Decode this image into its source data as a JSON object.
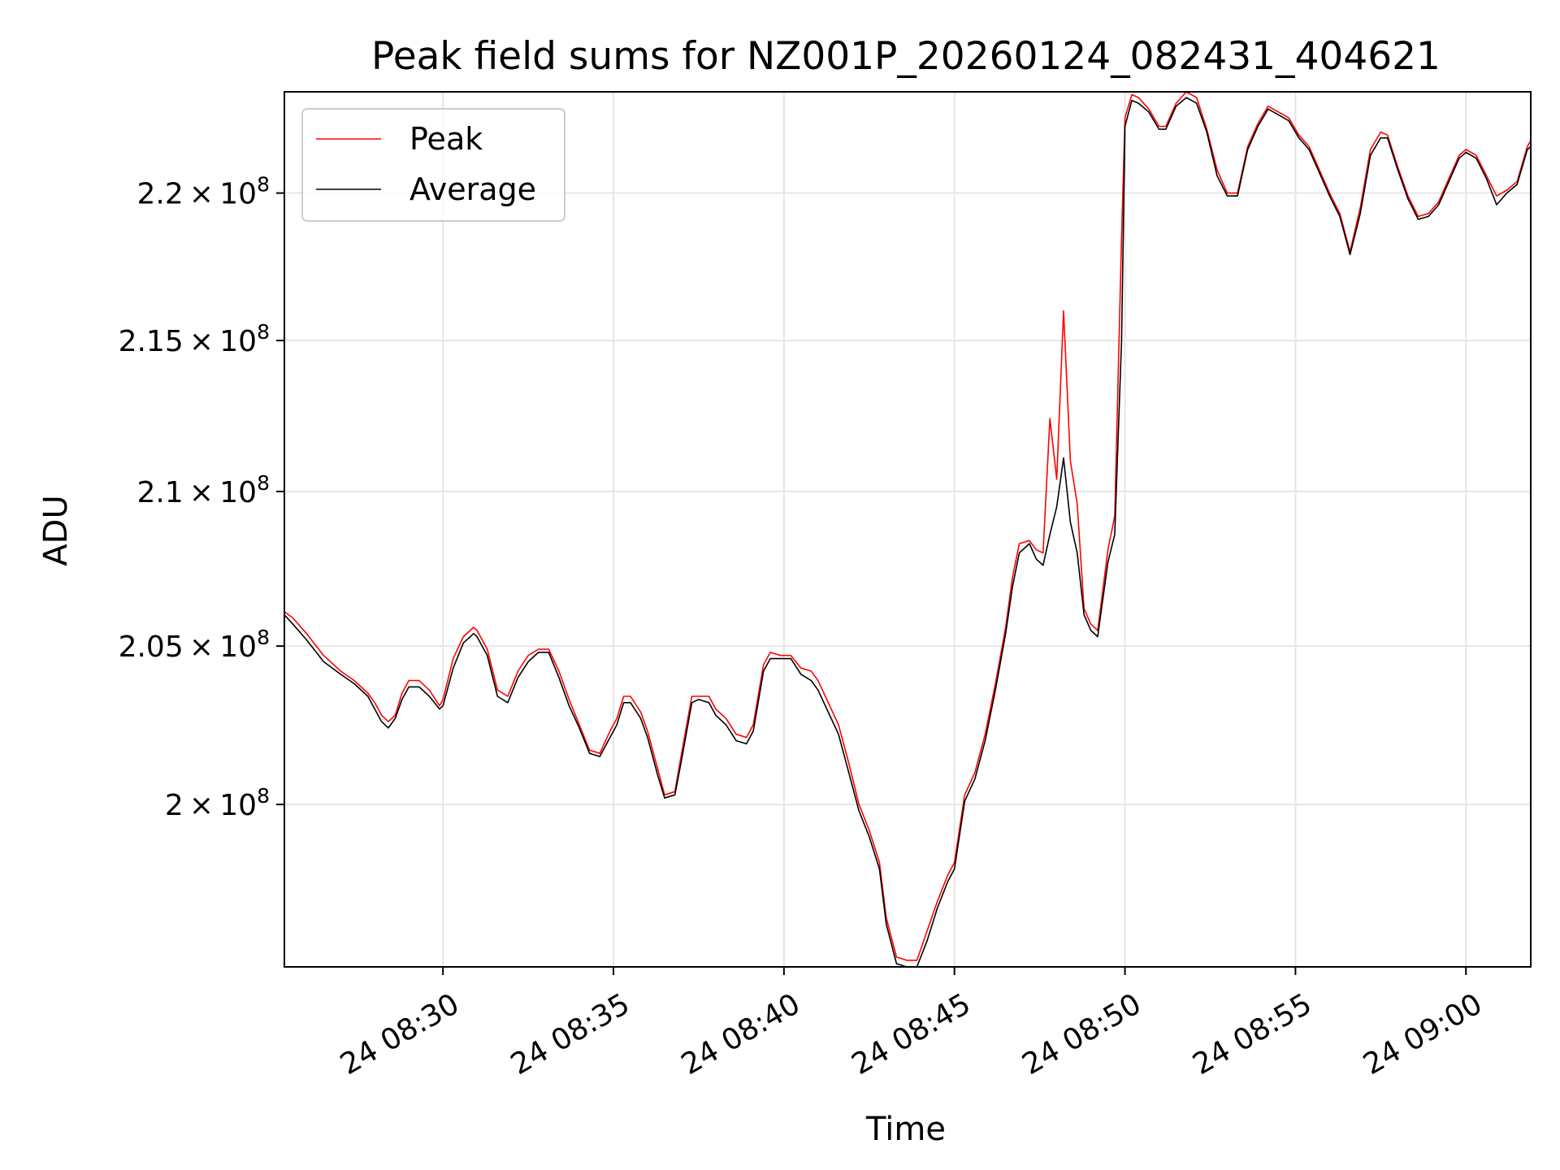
{
  "chart_data": {
    "type": "line",
    "title": "Peak field sums for NZ001P_20260124_082431_404621",
    "xlabel": "Time",
    "ylabel": "ADU",
    "y_scale": "log",
    "grid": true,
    "legend_position": "top-left",
    "xlim_min": [
      25.35,
      61.9
    ],
    "ylim": [
      195000000.0,
      223500000.0
    ],
    "x_ticks": [
      {
        "value": 30,
        "label": "24 08:30"
      },
      {
        "value": 35,
        "label": "24 08:35"
      },
      {
        "value": 40,
        "label": "24 08:40"
      },
      {
        "value": 45,
        "label": "24 08:45"
      },
      {
        "value": 50,
        "label": "24 08:50"
      },
      {
        "value": 55,
        "label": "24 08:55"
      },
      {
        "value": 60,
        "label": "24 09:00"
      }
    ],
    "y_ticks": [
      {
        "value": 200000000,
        "mantissa": "2",
        "exp": "8"
      },
      {
        "value": 205000000,
        "mantissa": "2.05",
        "exp": "8"
      },
      {
        "value": 210000000,
        "mantissa": "2.1",
        "exp": "8"
      },
      {
        "value": 215000000,
        "mantissa": "2.15",
        "exp": "8"
      },
      {
        "value": 220000000,
        "mantissa": "2.2",
        "exp": "8"
      }
    ],
    "series": [
      {
        "name": "Peak",
        "color": "#ff0000",
        "points": [
          [
            25.35,
            206.1
          ],
          [
            25.6,
            205.9
          ],
          [
            26.0,
            205.4
          ],
          [
            26.5,
            204.7
          ],
          [
            27.0,
            204.2
          ],
          [
            27.4,
            203.9
          ],
          [
            27.8,
            203.5
          ],
          [
            28.0,
            203.2
          ],
          [
            28.2,
            202.8
          ],
          [
            28.4,
            202.6
          ],
          [
            28.6,
            202.8
          ],
          [
            28.8,
            203.5
          ],
          [
            29.0,
            203.9
          ],
          [
            29.3,
            203.9
          ],
          [
            29.6,
            203.6
          ],
          [
            29.9,
            203.1
          ],
          [
            30.0,
            203.3
          ],
          [
            30.3,
            204.6
          ],
          [
            30.6,
            205.3
          ],
          [
            30.9,
            205.6
          ],
          [
            31.0,
            205.5
          ],
          [
            31.3,
            204.9
          ],
          [
            31.6,
            203.6
          ],
          [
            31.9,
            203.4
          ],
          [
            32.2,
            204.2
          ],
          [
            32.5,
            204.7
          ],
          [
            32.8,
            204.9
          ],
          [
            33.1,
            204.9
          ],
          [
            33.4,
            204.2
          ],
          [
            33.7,
            203.3
          ],
          [
            34.0,
            202.5
          ],
          [
            34.3,
            201.7
          ],
          [
            34.6,
            201.6
          ],
          [
            34.9,
            202.3
          ],
          [
            35.1,
            202.7
          ],
          [
            35.3,
            203.4
          ],
          [
            35.5,
            203.4
          ],
          [
            35.8,
            202.9
          ],
          [
            36.0,
            202.3
          ],
          [
            36.3,
            201.1
          ],
          [
            36.5,
            200.3
          ],
          [
            36.8,
            200.4
          ],
          [
            37.0,
            201.6
          ],
          [
            37.3,
            203.4
          ],
          [
            37.5,
            203.4
          ],
          [
            37.8,
            203.4
          ],
          [
            38.0,
            203.0
          ],
          [
            38.3,
            202.7
          ],
          [
            38.6,
            202.2
          ],
          [
            38.9,
            202.1
          ],
          [
            39.1,
            202.5
          ],
          [
            39.4,
            204.4
          ],
          [
            39.6,
            204.8
          ],
          [
            39.9,
            204.7
          ],
          [
            40.2,
            204.7
          ],
          [
            40.5,
            204.3
          ],
          [
            40.8,
            204.2
          ],
          [
            41.0,
            203.9
          ],
          [
            41.3,
            203.2
          ],
          [
            41.6,
            202.5
          ],
          [
            41.9,
            201.3
          ],
          [
            42.2,
            200.0
          ],
          [
            42.5,
            199.2
          ],
          [
            42.8,
            198.2
          ],
          [
            43.0,
            196.5
          ],
          [
            43.3,
            195.3
          ],
          [
            43.6,
            195.2
          ],
          [
            43.9,
            195.2
          ],
          [
            44.2,
            196.1
          ],
          [
            44.5,
            197.0
          ],
          [
            44.8,
            197.8
          ],
          [
            45.0,
            198.2
          ],
          [
            45.3,
            200.3
          ],
          [
            45.6,
            201.0
          ],
          [
            45.9,
            202.2
          ],
          [
            46.2,
            203.8
          ],
          [
            46.5,
            205.6
          ],
          [
            46.7,
            207.2
          ],
          [
            46.9,
            208.3
          ],
          [
            47.2,
            208.4
          ],
          [
            47.4,
            208.1
          ],
          [
            47.6,
            208.0
          ],
          [
            47.8,
            212.4
          ],
          [
            48.0,
            210.4
          ],
          [
            48.2,
            216.0
          ],
          [
            48.4,
            211.0
          ],
          [
            48.6,
            209.6
          ],
          [
            48.8,
            206.2
          ],
          [
            49.0,
            205.7
          ],
          [
            49.2,
            205.5
          ],
          [
            49.5,
            208.1
          ],
          [
            49.7,
            209.2
          ],
          [
            49.9,
            218.5
          ],
          [
            50.0,
            222.6
          ],
          [
            50.2,
            223.4
          ],
          [
            50.4,
            223.3
          ],
          [
            50.7,
            222.9
          ],
          [
            51.0,
            222.3
          ],
          [
            51.2,
            222.3
          ],
          [
            51.5,
            223.1
          ],
          [
            51.8,
            223.5
          ],
          [
            52.1,
            223.3
          ],
          [
            52.4,
            222.2
          ],
          [
            52.7,
            220.8
          ],
          [
            53.0,
            220.0
          ],
          [
            53.3,
            220.0
          ],
          [
            53.6,
            221.6
          ],
          [
            53.9,
            222.4
          ],
          [
            54.2,
            223.0
          ],
          [
            54.5,
            222.8
          ],
          [
            54.8,
            222.6
          ],
          [
            55.1,
            222.0
          ],
          [
            55.4,
            221.6
          ],
          [
            55.7,
            220.8
          ],
          [
            56.0,
            220.0
          ],
          [
            56.3,
            219.3
          ],
          [
            56.6,
            218.0
          ],
          [
            56.9,
            219.5
          ],
          [
            57.2,
            221.5
          ],
          [
            57.5,
            222.1
          ],
          [
            57.7,
            222.0
          ],
          [
            58.0,
            220.9
          ],
          [
            58.3,
            219.9
          ],
          [
            58.6,
            219.2
          ],
          [
            58.9,
            219.3
          ],
          [
            59.2,
            219.7
          ],
          [
            59.5,
            220.5
          ],
          [
            59.8,
            221.3
          ],
          [
            60.0,
            221.5
          ],
          [
            60.3,
            221.3
          ],
          [
            60.6,
            220.6
          ],
          [
            60.9,
            219.9
          ],
          [
            61.2,
            220.1
          ],
          [
            61.5,
            220.4
          ],
          [
            61.8,
            221.6
          ],
          [
            61.9,
            221.8
          ]
        ]
      },
      {
        "name": "Average",
        "color": "#000000",
        "points": [
          [
            25.35,
            206.0
          ],
          [
            25.6,
            205.7
          ],
          [
            26.0,
            205.2
          ],
          [
            26.5,
            204.5
          ],
          [
            27.0,
            204.1
          ],
          [
            27.4,
            203.8
          ],
          [
            27.8,
            203.4
          ],
          [
            28.0,
            203.0
          ],
          [
            28.2,
            202.6
          ],
          [
            28.4,
            202.4
          ],
          [
            28.6,
            202.7
          ],
          [
            28.8,
            203.3
          ],
          [
            29.0,
            203.7
          ],
          [
            29.3,
            203.7
          ],
          [
            29.6,
            203.4
          ],
          [
            29.9,
            203.0
          ],
          [
            30.0,
            203.1
          ],
          [
            30.3,
            204.3
          ],
          [
            30.6,
            205.1
          ],
          [
            30.9,
            205.4
          ],
          [
            31.0,
            205.3
          ],
          [
            31.3,
            204.7
          ],
          [
            31.6,
            203.4
          ],
          [
            31.9,
            203.2
          ],
          [
            32.2,
            204.0
          ],
          [
            32.5,
            204.5
          ],
          [
            32.8,
            204.8
          ],
          [
            33.1,
            204.8
          ],
          [
            33.4,
            204.0
          ],
          [
            33.7,
            203.1
          ],
          [
            34.0,
            202.4
          ],
          [
            34.3,
            201.6
          ],
          [
            34.6,
            201.5
          ],
          [
            34.9,
            202.1
          ],
          [
            35.1,
            202.5
          ],
          [
            35.3,
            203.2
          ],
          [
            35.5,
            203.2
          ],
          [
            35.8,
            202.7
          ],
          [
            36.0,
            202.1
          ],
          [
            36.3,
            200.9
          ],
          [
            36.5,
            200.2
          ],
          [
            36.8,
            200.3
          ],
          [
            37.0,
            201.4
          ],
          [
            37.3,
            203.2
          ],
          [
            37.5,
            203.3
          ],
          [
            37.8,
            203.2
          ],
          [
            38.0,
            202.8
          ],
          [
            38.3,
            202.5
          ],
          [
            38.6,
            202.0
          ],
          [
            38.9,
            201.9
          ],
          [
            39.1,
            202.3
          ],
          [
            39.4,
            204.2
          ],
          [
            39.6,
            204.6
          ],
          [
            39.9,
            204.6
          ],
          [
            40.2,
            204.6
          ],
          [
            40.5,
            204.1
          ],
          [
            40.8,
            203.9
          ],
          [
            41.0,
            203.6
          ],
          [
            41.3,
            202.9
          ],
          [
            41.6,
            202.2
          ],
          [
            41.9,
            201.0
          ],
          [
            42.2,
            199.8
          ],
          [
            42.5,
            199.0
          ],
          [
            42.8,
            198.0
          ],
          [
            43.0,
            196.3
          ],
          [
            43.3,
            195.1
          ],
          [
            43.6,
            195.0
          ],
          [
            43.9,
            195.0
          ],
          [
            44.2,
            195.8
          ],
          [
            44.5,
            196.8
          ],
          [
            44.8,
            197.6
          ],
          [
            45.0,
            198.0
          ],
          [
            45.3,
            200.1
          ],
          [
            45.6,
            200.8
          ],
          [
            45.9,
            202.0
          ],
          [
            46.2,
            203.6
          ],
          [
            46.5,
            205.4
          ],
          [
            46.7,
            206.9
          ],
          [
            46.9,
            208.0
          ],
          [
            47.2,
            208.3
          ],
          [
            47.4,
            207.8
          ],
          [
            47.6,
            207.6
          ],
          [
            47.8,
            208.6
          ],
          [
            48.0,
            209.5
          ],
          [
            48.2,
            211.1
          ],
          [
            48.4,
            209.0
          ],
          [
            48.6,
            208.0
          ],
          [
            48.8,
            206.0
          ],
          [
            49.0,
            205.5
          ],
          [
            49.2,
            205.3
          ],
          [
            49.5,
            207.7
          ],
          [
            49.7,
            208.6
          ],
          [
            49.9,
            215.0
          ],
          [
            50.0,
            222.3
          ],
          [
            50.2,
            223.2
          ],
          [
            50.4,
            223.1
          ],
          [
            50.7,
            222.8
          ],
          [
            51.0,
            222.2
          ],
          [
            51.2,
            222.2
          ],
          [
            51.5,
            223.0
          ],
          [
            51.8,
            223.3
          ],
          [
            52.1,
            223.1
          ],
          [
            52.4,
            222.1
          ],
          [
            52.7,
            220.6
          ],
          [
            53.0,
            219.9
          ],
          [
            53.3,
            219.9
          ],
          [
            53.6,
            221.5
          ],
          [
            53.9,
            222.3
          ],
          [
            54.2,
            222.9
          ],
          [
            54.5,
            222.7
          ],
          [
            54.8,
            222.5
          ],
          [
            55.1,
            221.9
          ],
          [
            55.4,
            221.5
          ],
          [
            55.7,
            220.7
          ],
          [
            56.0,
            219.9
          ],
          [
            56.3,
            219.2
          ],
          [
            56.6,
            217.9
          ],
          [
            56.9,
            219.3
          ],
          [
            57.2,
            221.3
          ],
          [
            57.5,
            221.9
          ],
          [
            57.7,
            221.9
          ],
          [
            58.0,
            220.8
          ],
          [
            58.3,
            219.8
          ],
          [
            58.6,
            219.1
          ],
          [
            58.9,
            219.2
          ],
          [
            59.2,
            219.6
          ],
          [
            59.5,
            220.4
          ],
          [
            59.8,
            221.2
          ],
          [
            60.0,
            221.4
          ],
          [
            60.3,
            221.2
          ],
          [
            60.6,
            220.5
          ],
          [
            60.9,
            219.6
          ],
          [
            61.2,
            220.0
          ],
          [
            61.5,
            220.3
          ],
          [
            61.8,
            221.5
          ],
          [
            61.9,
            221.6
          ]
        ]
      }
    ]
  }
}
